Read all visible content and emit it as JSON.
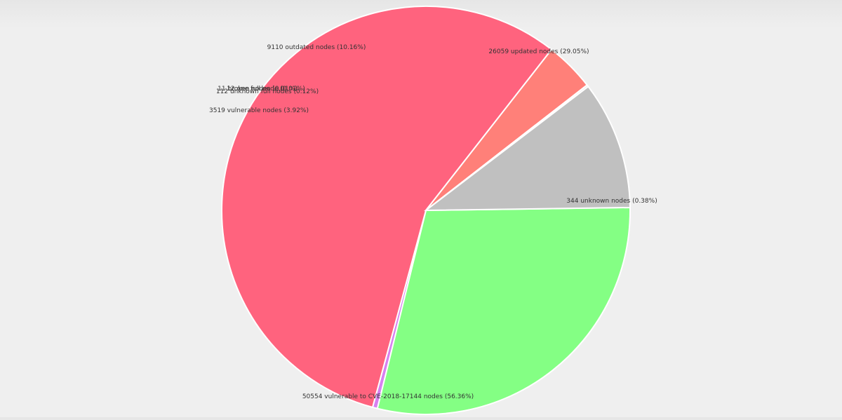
{
  "chart_data": {
    "type": "pie",
    "title": "",
    "slices": [
      {
        "label": "26059 updated nodes (29.05%)",
        "value": 26059,
        "percent": 29.05,
        "color": "#84ff84"
      },
      {
        "label": "344 unknown nodes (0.38%)",
        "value": 344,
        "percent": 0.38,
        "color": "#d780f0"
      },
      {
        "label": "50554 vulnerable to CVE-2018-17144 nodes (56.36%)",
        "value": 50554,
        "percent": 56.36,
        "color": "#ff637e"
      },
      {
        "label": "3519 vulnerable nodes (3.92%)",
        "value": 3519,
        "percent": 3.92,
        "color": "#ff8079"
      },
      {
        "label": "11 broken nodes (0.01%)",
        "value": 11,
        "percent": 0.01,
        "color": "#c01c1c"
      },
      {
        "label": "12 one full node (0.01%)",
        "value": 12,
        "percent": 0.01,
        "color": "#4b8bff"
      },
      {
        "label": "112 unknown full nodes (0.12%)",
        "value": 112,
        "percent": 0.12,
        "color": "#a9a9a9"
      },
      {
        "label": "9110 outdated nodes (10.16%)",
        "value": 9110,
        "percent": 10.16,
        "color": "#c0c0c0"
      }
    ],
    "legend": "none"
  }
}
